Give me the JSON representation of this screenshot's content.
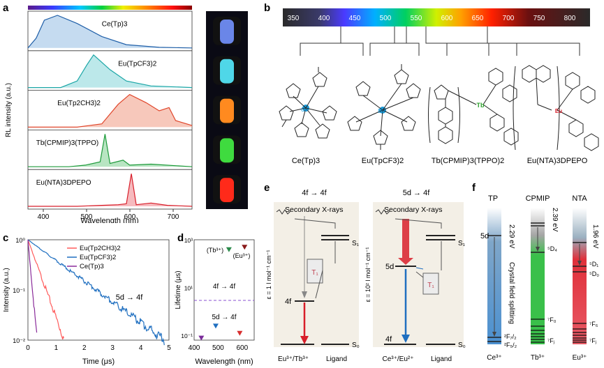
{
  "panel_letters": {
    "a": "a",
    "b": "b",
    "c": "c",
    "d": "d",
    "e": "e",
    "f": "f"
  },
  "panel_a": {
    "y_label": "RL intensity (a.u.)",
    "x_label": "Wavelength (nm)",
    "x_ticks": [
      "400",
      "500",
      "600",
      "700"
    ],
    "rows": [
      {
        "label": "Ce(Tp)3",
        "color": "#1f5fa8",
        "fill": "#9ec3e6",
        "glow": "#6a86e8"
      },
      {
        "label": "Eu(TpCF3)2",
        "color": "#1aa6a6",
        "fill": "#8fd9dc",
        "glow": "#4fd7e8"
      },
      {
        "label": "Eu(Tp2CH3)2",
        "color": "#e0452a",
        "fill": "#f2a48d",
        "glow": "#ff8a1f"
      },
      {
        "label": "Tb(CPMIP)3(TPPO)",
        "color": "#1d9a3a",
        "fill": "#88d39a",
        "glow": "#3fdb3f"
      },
      {
        "label": "Eu(NTA)3DPEPO",
        "color": "#d81e2a",
        "fill": "#f08c92",
        "glow": "#ff2a1a"
      }
    ]
  },
  "panel_b": {
    "wavelength_ticks": [
      "350",
      "400",
      "450",
      "500",
      "550",
      "600",
      "650",
      "700",
      "750",
      "800"
    ],
    "molecule_labels": [
      "Ce(Tp)3",
      "Eu(TpCF3)2",
      "Tb(CPMIP)3(TPPO)2",
      "Eu(NTA)3DPEPO"
    ]
  },
  "panel_c": {
    "y_label": "Intensity (a.u.)",
    "x_label": "Time (μs)",
    "x_ticks": [
      "0",
      "1",
      "2",
      "3",
      "4",
      "5"
    ],
    "y_ticks": [
      "10⁰",
      "10⁻¹",
      "10⁻²"
    ],
    "annotation": "5d → 4f",
    "legend": [
      {
        "name": "Eu(Tp2CH3)2",
        "color": "#ff5c5c"
      },
      {
        "name": "Eu(TpCF3)2",
        "color": "#1f6fc0"
      },
      {
        "name": "Ce(Tp)3",
        "color": "#8a2b9a"
      }
    ]
  },
  "panel_d": {
    "y_label": "Lifetime (μs)",
    "x_label": "Wavelength (nm)",
    "x_ticks": [
      "400",
      "500",
      "600"
    ],
    "y_ticks": [
      "10³",
      "10¹",
      "10⁻¹"
    ],
    "upper_label": "4f → 4f",
    "lower_label": "5d → 4f",
    "tb_label": "(Tb³⁺)",
    "eu_label": "(Eu³⁺)"
  },
  "panel_e": {
    "left_title": "4f → 4f",
    "right_title": "5d → 4f",
    "xray_label": "Secondary X-rays",
    "eps_left": "ε = 1 l mol⁻¹ cm⁻¹",
    "eps_right": "ε = 10² l mol⁻¹ cm⁻¹",
    "left_bottom": "Eu³⁺/Tb³⁺",
    "right_bottom": "Ce³⁺/Eu²⁺",
    "ligand": "Ligand",
    "t1": "T₁",
    "s1": "S₁",
    "s0": "S₀",
    "level_4f": "4f",
    "level_5d": "5d"
  },
  "panel_f": {
    "columns": [
      "TP",
      "CPMIP",
      "NTA"
    ],
    "bottom": [
      "Ce³⁺",
      "Tb³⁺",
      "Eu³⁺"
    ],
    "ev": [
      "2.29 eV",
      "2.39 eV",
      "1.96 eV"
    ],
    "crystal_field": "Crystal field splitting",
    "levels": {
      "d5": "5d",
      "F72": "²F₇/₂",
      "F52": "²F₅/₂",
      "D4": "⁵D₄",
      "F0": "⁷F₀",
      "Fj_tb": "⁷Fⱼ",
      "D1": "⁵D₁",
      "D0": "⁵D₀",
      "F6": "⁷F₆",
      "Fj_eu": "⁷Fⱼ"
    }
  }
}
